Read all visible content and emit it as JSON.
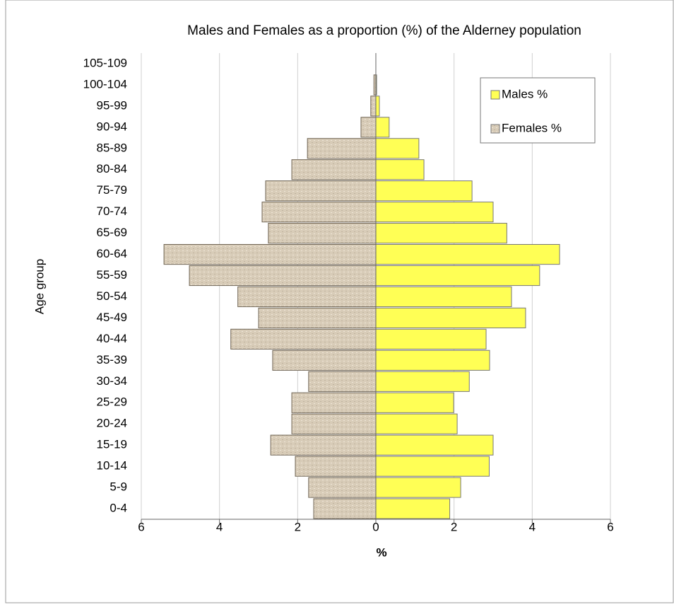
{
  "chart_data": {
    "type": "bar",
    "orientation": "horizontal",
    "layout": "pyramid",
    "title": "Males and Females as a proportion (%) of the Alderney population",
    "x_label": "%",
    "y_label": "Age group",
    "categories": [
      "0-4",
      "5-9",
      "10-14",
      "15-19",
      "20-24",
      "25-29",
      "30-34",
      "35-39",
      "40-44",
      "45-49",
      "50-54",
      "55-59",
      "60-64",
      "65-69",
      "70-74",
      "75-79",
      "80-84",
      "85-89",
      "90-94",
      "95-99",
      "100-104",
      "105-109"
    ],
    "series": [
      {
        "name": "Males %",
        "color": "#ffff55",
        "values": [
          1.89,
          2.17,
          2.9,
          3.0,
          2.08,
          1.99,
          2.39,
          2.91,
          2.82,
          3.83,
          3.47,
          4.19,
          4.7,
          3.35,
          3.0,
          2.46,
          1.23,
          1.1,
          0.34,
          0.09,
          0.02,
          0
        ]
      },
      {
        "name": "Females %",
        "color": "#d8ccb8",
        "values": [
          -1.59,
          -1.72,
          -2.06,
          -2.69,
          -2.15,
          -2.15,
          -1.72,
          -2.64,
          -3.71,
          -3.0,
          -3.53,
          -4.77,
          -5.42,
          -2.75,
          -2.91,
          -2.82,
          -2.15,
          -1.75,
          -0.38,
          -0.13,
          -0.05,
          0
        ]
      }
    ],
    "xlim": [
      -6,
      6
    ],
    "xticks": [
      {
        "value": -6,
        "label": "6"
      },
      {
        "value": -4,
        "label": "4"
      },
      {
        "value": -2,
        "label": "2"
      },
      0,
      2,
      4,
      6
    ],
    "grid": true,
    "legend": "upper right"
  }
}
